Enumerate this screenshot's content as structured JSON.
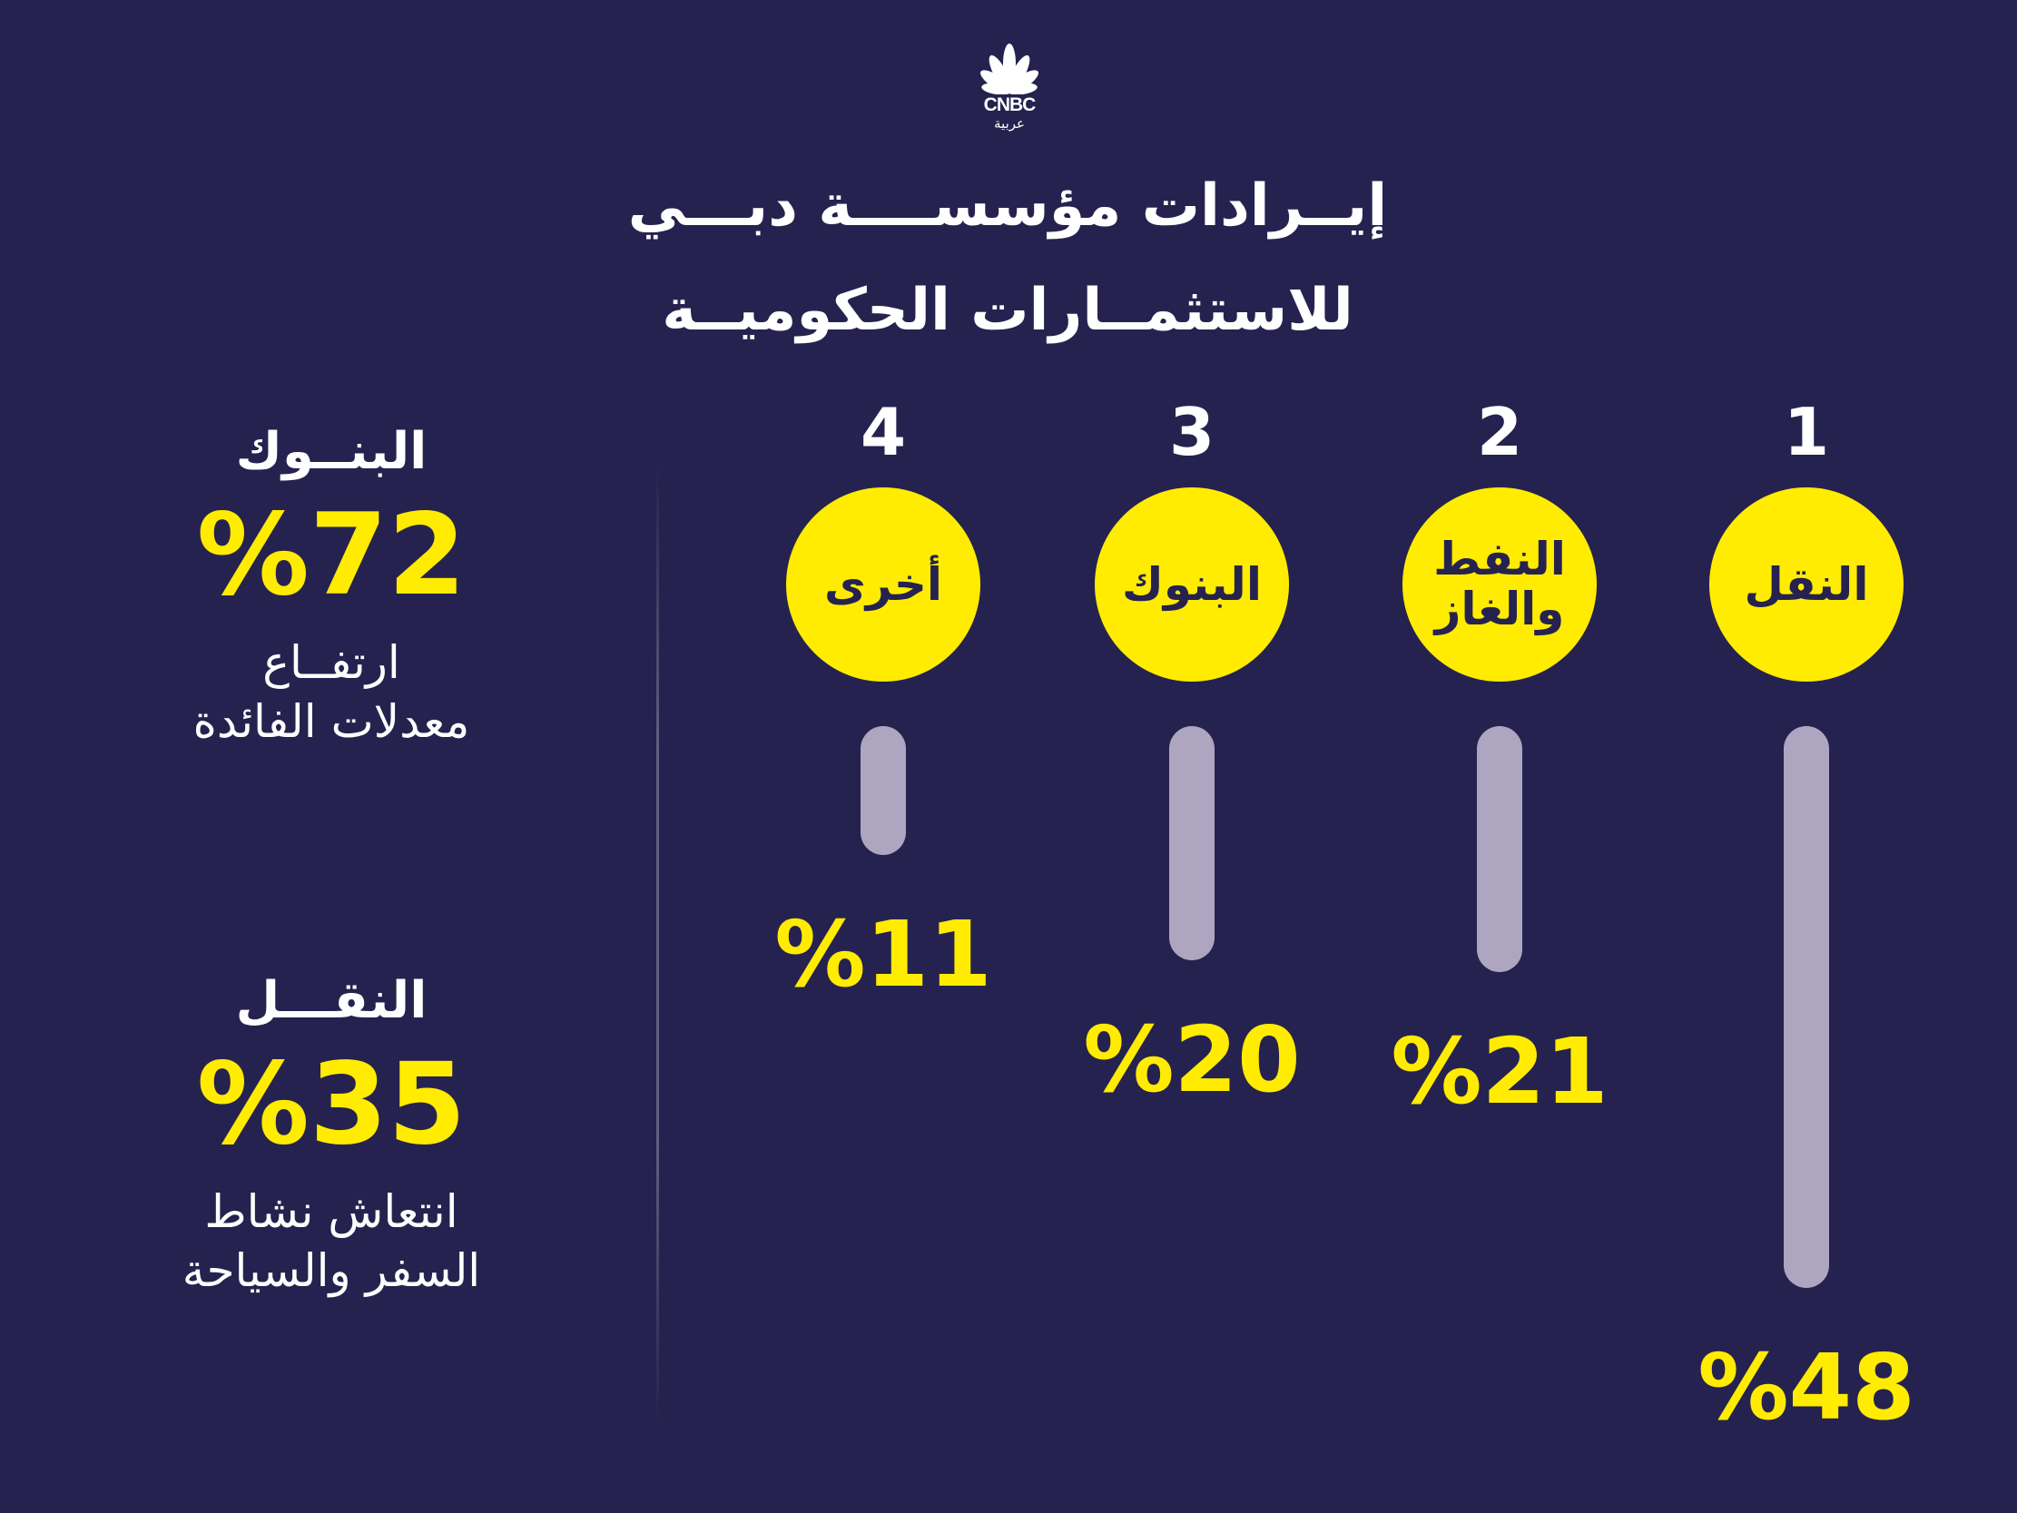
{
  "logo": {
    "text": "CNBC",
    "sub": "عربية",
    "icon": "peacock-icon"
  },
  "title": {
    "line1": "إيــرادات مؤسســــة دبـــي",
    "line2": "للاستثمــارات الحكوميــة"
  },
  "side": [
    {
      "title": "البنــوك",
      "value": "%72",
      "desc": "ارتفــاع\nمعدلات الفائدة"
    },
    {
      "title": "النقـــل",
      "value": "%35",
      "desc": "انتعاش نشاط\nالسفر والسياحة"
    }
  ],
  "colors": {
    "background": "#26224f",
    "accent": "#ffec00",
    "bar": "#aea6c0"
  },
  "chart_data": {
    "type": "bar",
    "orientation": "vertical-descending",
    "categories": [
      "النقل",
      "النفط والغاز",
      "البنوك",
      "أخرى"
    ],
    "ranks": [
      "1",
      "2",
      "3",
      "4"
    ],
    "values": [
      48,
      21,
      20,
      11
    ],
    "labels": [
      "%48",
      "%21",
      "%20",
      "%11"
    ],
    "category_display": [
      "النقل",
      "النفط\nوالغاز",
      "البنوك",
      "أخرى"
    ]
  }
}
